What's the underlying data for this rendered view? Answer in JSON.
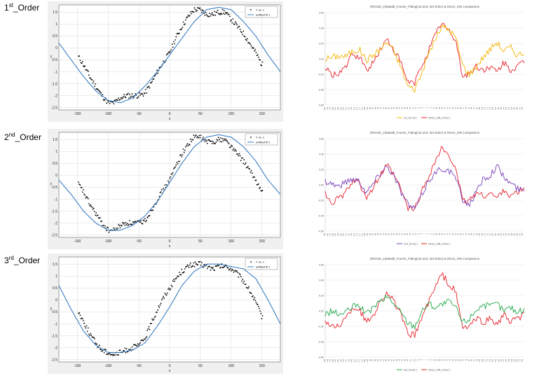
{
  "rows": [
    {
      "label_num": "1",
      "label_sup": "st",
      "label_rest": "_Order",
      "matlab": {
        "legend_data": "Y vs. x",
        "legend_fit": "untitled fit 1",
        "xlabel": "x",
        "ylabel": "y",
        "xticks": [
          "-150",
          "-100",
          "-50",
          "0",
          "50",
          "100",
          "150"
        ],
        "yticks": [
          "1.5",
          "1",
          "0.5",
          "0",
          "-0.5",
          "-1",
          "-1.5",
          "-2",
          "-2.5"
        ]
      },
      "excel": {
        "title": "(RDC50_1)Matalb_Fourier_Fitting(1st,2nd, 3rd Order) & Direct_SIN Comparison",
        "yticks": [
          "0.60",
          "0.40",
          "0.20",
          "0.00",
          "-0.20",
          "-0.40",
          "-0.60"
        ],
        "legend": [
          "1st_Error(\")",
          "Direct_SIN_Error(\")"
        ],
        "colors": [
          "#f4b400",
          "#e8202a"
        ]
      }
    },
    {
      "label_num": "2",
      "label_sup": "nd",
      "label_rest": "_Order",
      "matlab": {
        "legend_data": "Y vs. x",
        "legend_fit": "untitled fit 1",
        "xlabel": "x",
        "ylabel": "y",
        "xticks": [
          "-150",
          "-100",
          "-50",
          "0",
          "50",
          "100",
          "150"
        ],
        "yticks": [
          "1.5",
          "1",
          "0.5",
          "0",
          "-0.5",
          "-1",
          "-1.5",
          "-2",
          "-2.5"
        ]
      },
      "excel": {
        "title": "(RDC50_1)Matalb_Fourier_Fitting(1st,2nd, 3rd Order) & Direct_SIN Comparison",
        "yticks": [
          "0.60",
          "0.40",
          "0.20",
          "0.00",
          "-0.20",
          "-0.40",
          "-0.60"
        ],
        "legend": [
          "2nd_Error(\")",
          "Direct_SIN_Error(\")"
        ],
        "colors": [
          "#7b3fb8",
          "#e8202a"
        ]
      }
    },
    {
      "label_num": "3",
      "label_sup": "rd",
      "label_rest": "_Order",
      "matlab": {
        "legend_data": "Y vs. x",
        "legend_fit": "untitled fit 1",
        "xlabel": "x",
        "ylabel": "y",
        "xticks": [
          "-150",
          "-100",
          "-50",
          "0",
          "50",
          "100",
          "150"
        ],
        "yticks": [
          "1.5",
          "1",
          "0.5",
          "0",
          "-0.5",
          "-1",
          "-1.5",
          "-2",
          "-2.5"
        ]
      },
      "excel": {
        "title": "(RDC50_1)Matalb_Fourier_Fitting(1st,2nd, 3rd Order) & Direct_SIN Comparison",
        "yticks": [
          "0.60",
          "0.40",
          "0.20",
          "0.00",
          "-0.20",
          "-0.40",
          "-0.60"
        ],
        "legend": [
          "3rd_Error(\")",
          "Direct_SIN_Error(\")"
        ],
        "colors": [
          "#22a84a",
          "#e8202a"
        ]
      }
    }
  ],
  "chart_data": [
    {
      "type": "scatter",
      "xlabel": "x",
      "ylabel": "y",
      "xlim": [
        -180,
        180
      ],
      "ylim": [
        -2.6,
        1.8
      ],
      "series": [
        {
          "name": "Y vs. x",
          "style": "points",
          "color": "#000000",
          "x": [
            -150,
            -140,
            -130,
            -120,
            -110,
            -100,
            -90,
            -80,
            -70,
            -60,
            -50,
            -40,
            -30,
            -20,
            -10,
            0,
            10,
            20,
            30,
            40,
            50,
            60,
            70,
            80,
            90,
            100,
            110,
            120,
            130,
            140,
            150
          ],
          "y": [
            -0.3,
            -0.7,
            -1.2,
            -1.6,
            -2.0,
            -2.3,
            -2.3,
            -2.1,
            -2.0,
            -2.0,
            -2.0,
            -1.9,
            -1.5,
            -1.0,
            -0.6,
            -0.2,
            0.4,
            0.9,
            1.3,
            1.6,
            1.6,
            1.4,
            1.4,
            1.5,
            1.5,
            1.2,
            0.9,
            0.6,
            0.2,
            -0.2,
            -0.7
          ]
        },
        {
          "name": "untitled fit 1",
          "style": "line",
          "color": "#3b7fc4",
          "x": [
            -180,
            -160,
            -140,
            -120,
            -100,
            -80,
            -60,
            -40,
            -20,
            0,
            20,
            40,
            60,
            80,
            100,
            120,
            140,
            160,
            180
          ],
          "y": [
            0.2,
            -0.5,
            -1.2,
            -1.8,
            -2.2,
            -2.3,
            -2.1,
            -1.6,
            -1.0,
            -0.3,
            0.4,
            1.1,
            1.6,
            1.7,
            1.6,
            1.1,
            0.5,
            -0.3,
            -1.0
          ]
        }
      ]
    },
    {
      "type": "line",
      "title": "(RDC50_1)Matalb_Fourier_Fitting(1st,2nd, 3rd Order) & Direct_SIN Comparison",
      "ylim": [
        -0.6,
        0.6
      ],
      "series": [
        {
          "name": "1st_Error(\")",
          "color": "#f4b400",
          "values": [
            0.0,
            0.02,
            0.04,
            0.03,
            0.1,
            0.12,
            -0.02,
            0.05,
            0.12,
            0.22,
            0.1,
            -0.1,
            -0.35,
            -0.4,
            -0.2,
            0.05,
            0.25,
            0.42,
            0.38,
            0.28,
            -0.08,
            -0.2,
            -0.1,
            0.02,
            0.12,
            0.22,
            0.1,
            0.15,
            0.05,
            0.08
          ]
        },
        {
          "name": "Direct_SIN_Error(\")",
          "color": "#e8202a",
          "values": [
            -0.12,
            -0.22,
            -0.18,
            -0.1,
            0.05,
            0.02,
            -0.15,
            -0.05,
            0.12,
            0.25,
            0.12,
            -0.05,
            -0.3,
            -0.32,
            -0.1,
            0.1,
            0.3,
            0.48,
            0.35,
            0.25,
            -0.22,
            -0.2,
            -0.1,
            -0.15,
            -0.1,
            -0.18,
            -0.05,
            -0.15,
            -0.1,
            -0.05
          ]
        }
      ]
    },
    {
      "type": "scatter",
      "xlabel": "x",
      "ylabel": "y",
      "xlim": [
        -180,
        180
      ],
      "ylim": [
        -2.6,
        1.8
      ],
      "series": [
        {
          "name": "Y vs. x",
          "style": "points",
          "color": "#000000",
          "x": [
            -150,
            -140,
            -130,
            -120,
            -110,
            -100,
            -90,
            -80,
            -70,
            -60,
            -50,
            -40,
            -30,
            -20,
            -10,
            0,
            10,
            20,
            30,
            40,
            50,
            60,
            70,
            80,
            90,
            100,
            110,
            120,
            130,
            140,
            150
          ],
          "y": [
            -0.3,
            -0.7,
            -1.2,
            -1.6,
            -2.0,
            -2.3,
            -2.3,
            -2.1,
            -2.0,
            -2.0,
            -2.0,
            -1.9,
            -1.5,
            -1.0,
            -0.6,
            -0.2,
            0.4,
            0.9,
            1.3,
            1.6,
            1.6,
            1.4,
            1.4,
            1.5,
            1.5,
            1.2,
            0.9,
            0.6,
            0.2,
            -0.2,
            -0.7
          ]
        },
        {
          "name": "untitled fit 1",
          "style": "line",
          "color": "#3b7fc4",
          "x": [
            -180,
            -160,
            -140,
            -120,
            -100,
            -80,
            -60,
            -40,
            -20,
            0,
            20,
            40,
            60,
            80,
            100,
            120,
            140,
            160,
            180
          ],
          "y": [
            -0.2,
            -0.8,
            -1.5,
            -2.0,
            -2.3,
            -2.3,
            -2.1,
            -1.7,
            -1.1,
            -0.3,
            0.5,
            1.2,
            1.6,
            1.7,
            1.6,
            1.2,
            0.6,
            -0.2,
            -0.8
          ]
        }
      ]
    },
    {
      "type": "line",
      "title": "(RDC50_1)Matalb_Fourier_Fitting(1st,2nd, 3rd Order) & Direct_SIN Comparison",
      "ylim": [
        -0.6,
        0.6
      ],
      "series": [
        {
          "name": "2nd_Error(\")",
          "color": "#7b3fb8",
          "values": [
            0.05,
            0.02,
            -0.02,
            0.04,
            0.08,
            0.05,
            -0.1,
            0.02,
            0.15,
            0.25,
            0.12,
            -0.08,
            -0.25,
            -0.32,
            -0.15,
            0.05,
            0.15,
            0.22,
            0.18,
            0.1,
            -0.2,
            -0.25,
            -0.1,
            0.08,
            0.12,
            0.25,
            0.1,
            0.02,
            -0.05,
            -0.08
          ]
        },
        {
          "name": "Direct_SIN_Error(\")",
          "color": "#e8202a",
          "values": [
            -0.12,
            -0.22,
            -0.18,
            -0.1,
            0.05,
            0.02,
            -0.15,
            -0.05,
            0.12,
            0.25,
            0.12,
            -0.05,
            -0.3,
            -0.32,
            -0.1,
            0.1,
            0.3,
            0.48,
            0.35,
            0.25,
            -0.22,
            -0.2,
            -0.1,
            -0.15,
            -0.1,
            -0.18,
            -0.05,
            -0.15,
            -0.1,
            -0.05
          ]
        }
      ]
    },
    {
      "type": "scatter",
      "xlabel": "x",
      "ylabel": "y",
      "xlim": [
        -180,
        180
      ],
      "ylim": [
        -2.6,
        1.8
      ],
      "series": [
        {
          "name": "Y vs. x",
          "style": "points",
          "color": "#000000",
          "x": [
            -150,
            -140,
            -130,
            -120,
            -110,
            -100,
            -90,
            -80,
            -70,
            -60,
            -50,
            -40,
            -30,
            -20,
            -10,
            0,
            10,
            20,
            30,
            40,
            50,
            60,
            70,
            80,
            90,
            100,
            110,
            120,
            130,
            140,
            150
          ],
          "y": [
            -0.4,
            -0.9,
            -1.4,
            -1.8,
            -2.1,
            -2.2,
            -2.3,
            -2.2,
            -2.1,
            -2.0,
            -1.9,
            -1.6,
            -1.0,
            -0.4,
            0.1,
            0.5,
            0.9,
            1.2,
            1.4,
            1.5,
            1.5,
            1.4,
            1.3,
            1.4,
            1.4,
            1.3,
            1.1,
            0.8,
            0.4,
            -0.1,
            -0.7
          ]
        },
        {
          "name": "untitled fit 1",
          "style": "line",
          "color": "#3b7fc4",
          "x": [
            -180,
            -160,
            -140,
            -120,
            -100,
            -80,
            -60,
            -40,
            -20,
            0,
            20,
            40,
            60,
            80,
            100,
            120,
            140,
            160,
            180
          ],
          "y": [
            0.6,
            -0.4,
            -1.3,
            -1.9,
            -2.2,
            -2.2,
            -2.1,
            -1.8,
            -1.1,
            -0.3,
            0.6,
            1.2,
            1.5,
            1.5,
            1.4,
            1.3,
            0.9,
            0.0,
            -1.0
          ]
        }
      ]
    },
    {
      "type": "line",
      "title": "(RDC50_1)Matalb_Fourier_Fitting(1st,2nd, 3rd Order) & Direct_SIN Comparison",
      "ylim": [
        -0.6,
        0.6
      ],
      "series": [
        {
          "name": "3rd_Error(\")",
          "color": "#22a84a",
          "values": [
            -0.05,
            0.0,
            -0.05,
            -0.02,
            0.05,
            0.08,
            -0.05,
            0.05,
            0.12,
            0.18,
            0.1,
            -0.02,
            -0.15,
            -0.2,
            -0.02,
            0.1,
            0.05,
            0.08,
            0.12,
            0.05,
            -0.15,
            -0.1,
            0.02,
            0.08,
            0.05,
            0.1,
            0.0,
            0.05,
            -0.02,
            0.02
          ]
        },
        {
          "name": "Direct_SIN_Error(\")",
          "color": "#e8202a",
          "values": [
            -0.12,
            -0.22,
            -0.18,
            -0.1,
            0.05,
            0.02,
            -0.15,
            -0.05,
            0.12,
            0.25,
            0.12,
            -0.05,
            -0.3,
            -0.32,
            -0.1,
            0.1,
            0.3,
            0.48,
            0.35,
            0.25,
            -0.22,
            -0.2,
            -0.1,
            -0.15,
            -0.1,
            -0.18,
            -0.05,
            -0.15,
            -0.1,
            -0.05
          ]
        }
      ]
    }
  ]
}
